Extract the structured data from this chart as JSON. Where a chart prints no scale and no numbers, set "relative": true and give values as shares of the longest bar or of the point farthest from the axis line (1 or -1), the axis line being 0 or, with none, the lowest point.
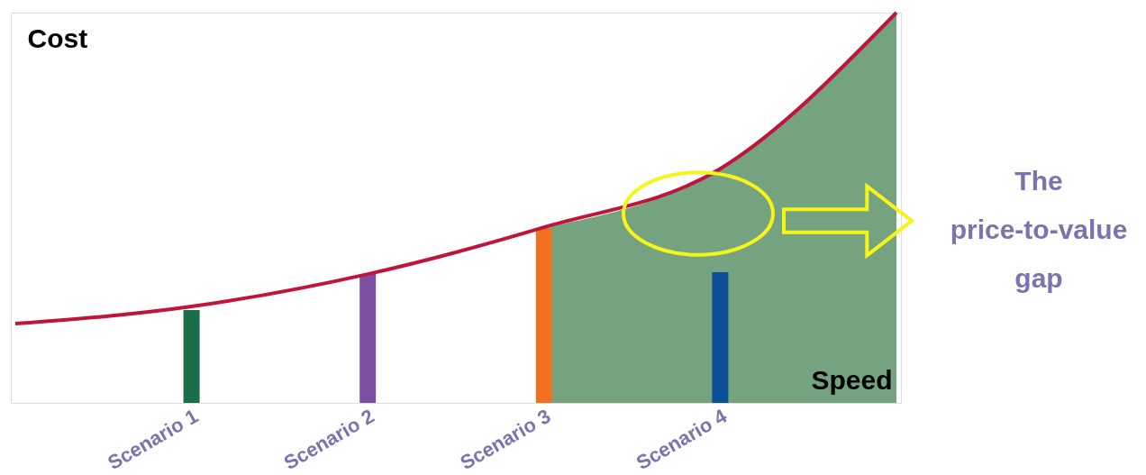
{
  "chart_data": {
    "type": "bar",
    "relative": true,
    "xlabel": "Speed",
    "ylabel": "Cost",
    "categories": [
      null,
      "Scenario 1",
      "Scenario 2",
      "Scenario 3",
      "Scenario 4",
      null
    ],
    "series": [
      {
        "type": "area",
        "color": "#6e9e78",
        "values": [
          null,
          null,
          null,
          0.45,
          0.6,
          1.0
        ]
      },
      {
        "colors": [
          null,
          "#1a6e45",
          "#7d4ea3",
          "#f07020",
          "#0d4f96",
          null
        ],
        "values": [
          null,
          0.238,
          0.33,
          0.446,
          0.335,
          null
        ]
      },
      {
        "type": "line",
        "color": "#c0143c",
        "values": [
          0.203,
          0.247,
          0.33,
          0.45,
          0.6,
          1.0
        ]
      }
    ],
    "annotations": [
      "The price-to-value gap"
    ]
  }
}
